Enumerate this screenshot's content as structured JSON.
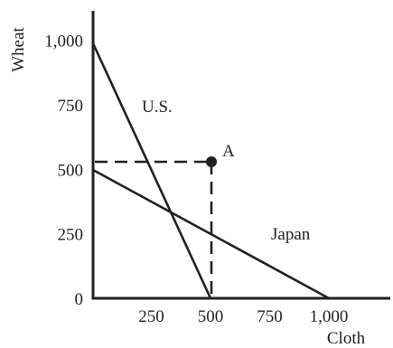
{
  "chart_data": {
    "type": "line",
    "title": "",
    "xlabel": "Cloth",
    "ylabel": "Wheat",
    "xlim": [
      0,
      1000
    ],
    "ylim": [
      0,
      1100
    ],
    "x_ticks": [
      {
        "value": 250,
        "label": "250"
      },
      {
        "value": 500,
        "label": "500"
      },
      {
        "value": 750,
        "label": "750"
      },
      {
        "value": 1000,
        "label": "1,000"
      }
    ],
    "y_ticks": [
      {
        "value": 0,
        "label": "0"
      },
      {
        "value": 250,
        "label": "250"
      },
      {
        "value": 500,
        "label": "500"
      },
      {
        "value": 750,
        "label": "750"
      },
      {
        "value": 1000,
        "label": "1,000"
      }
    ],
    "series": [
      {
        "name": "U.S.",
        "points": [
          [
            0,
            1000
          ],
          [
            500,
            0
          ]
        ]
      },
      {
        "name": "Japan",
        "points": [
          [
            0,
            500
          ],
          [
            1000,
            0
          ]
        ]
      }
    ],
    "point": {
      "label": "A",
      "x": 500,
      "y": 500
    },
    "grid": false,
    "colors": {
      "ink": "#231f20",
      "background": "#ffffff"
    }
  }
}
